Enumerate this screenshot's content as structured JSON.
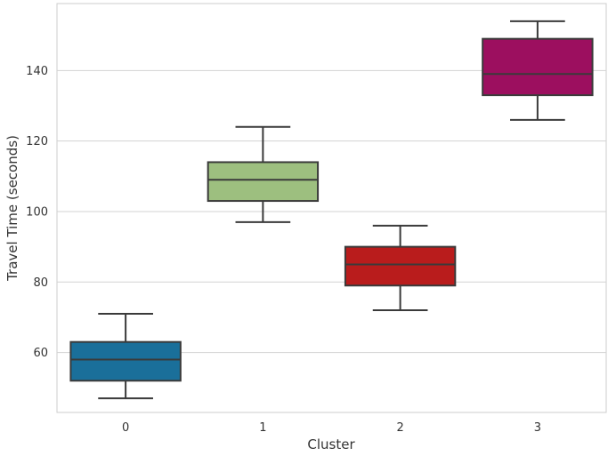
{
  "chart_data": {
    "type": "box",
    "xlabel": "Cluster",
    "ylabel": "Travel Time (seconds)",
    "categories": [
      "0",
      "1",
      "2",
      "3"
    ],
    "boxes": [
      {
        "category": "0",
        "whisker_low": 47,
        "q1": 52,
        "median": 58,
        "q3": 63,
        "whisker_high": 71,
        "color": "#1a6f9a"
      },
      {
        "category": "1",
        "whisker_low": 97,
        "q1": 103,
        "median": 109,
        "q3": 114,
        "whisker_high": 124,
        "color": "#9dbf7f"
      },
      {
        "category": "2",
        "whisker_low": 72,
        "q1": 79,
        "median": 85,
        "q3": 90,
        "whisker_high": 96,
        "color": "#b91c1c"
      },
      {
        "category": "3",
        "whisker_low": 126,
        "q1": 133,
        "median": 139,
        "q3": 149,
        "whisker_high": 154,
        "color": "#9c0f5f"
      }
    ],
    "yticks": [
      60,
      80,
      100,
      120,
      140
    ],
    "ylim": [
      43,
      159
    ],
    "grid": true,
    "legend": "none"
  }
}
